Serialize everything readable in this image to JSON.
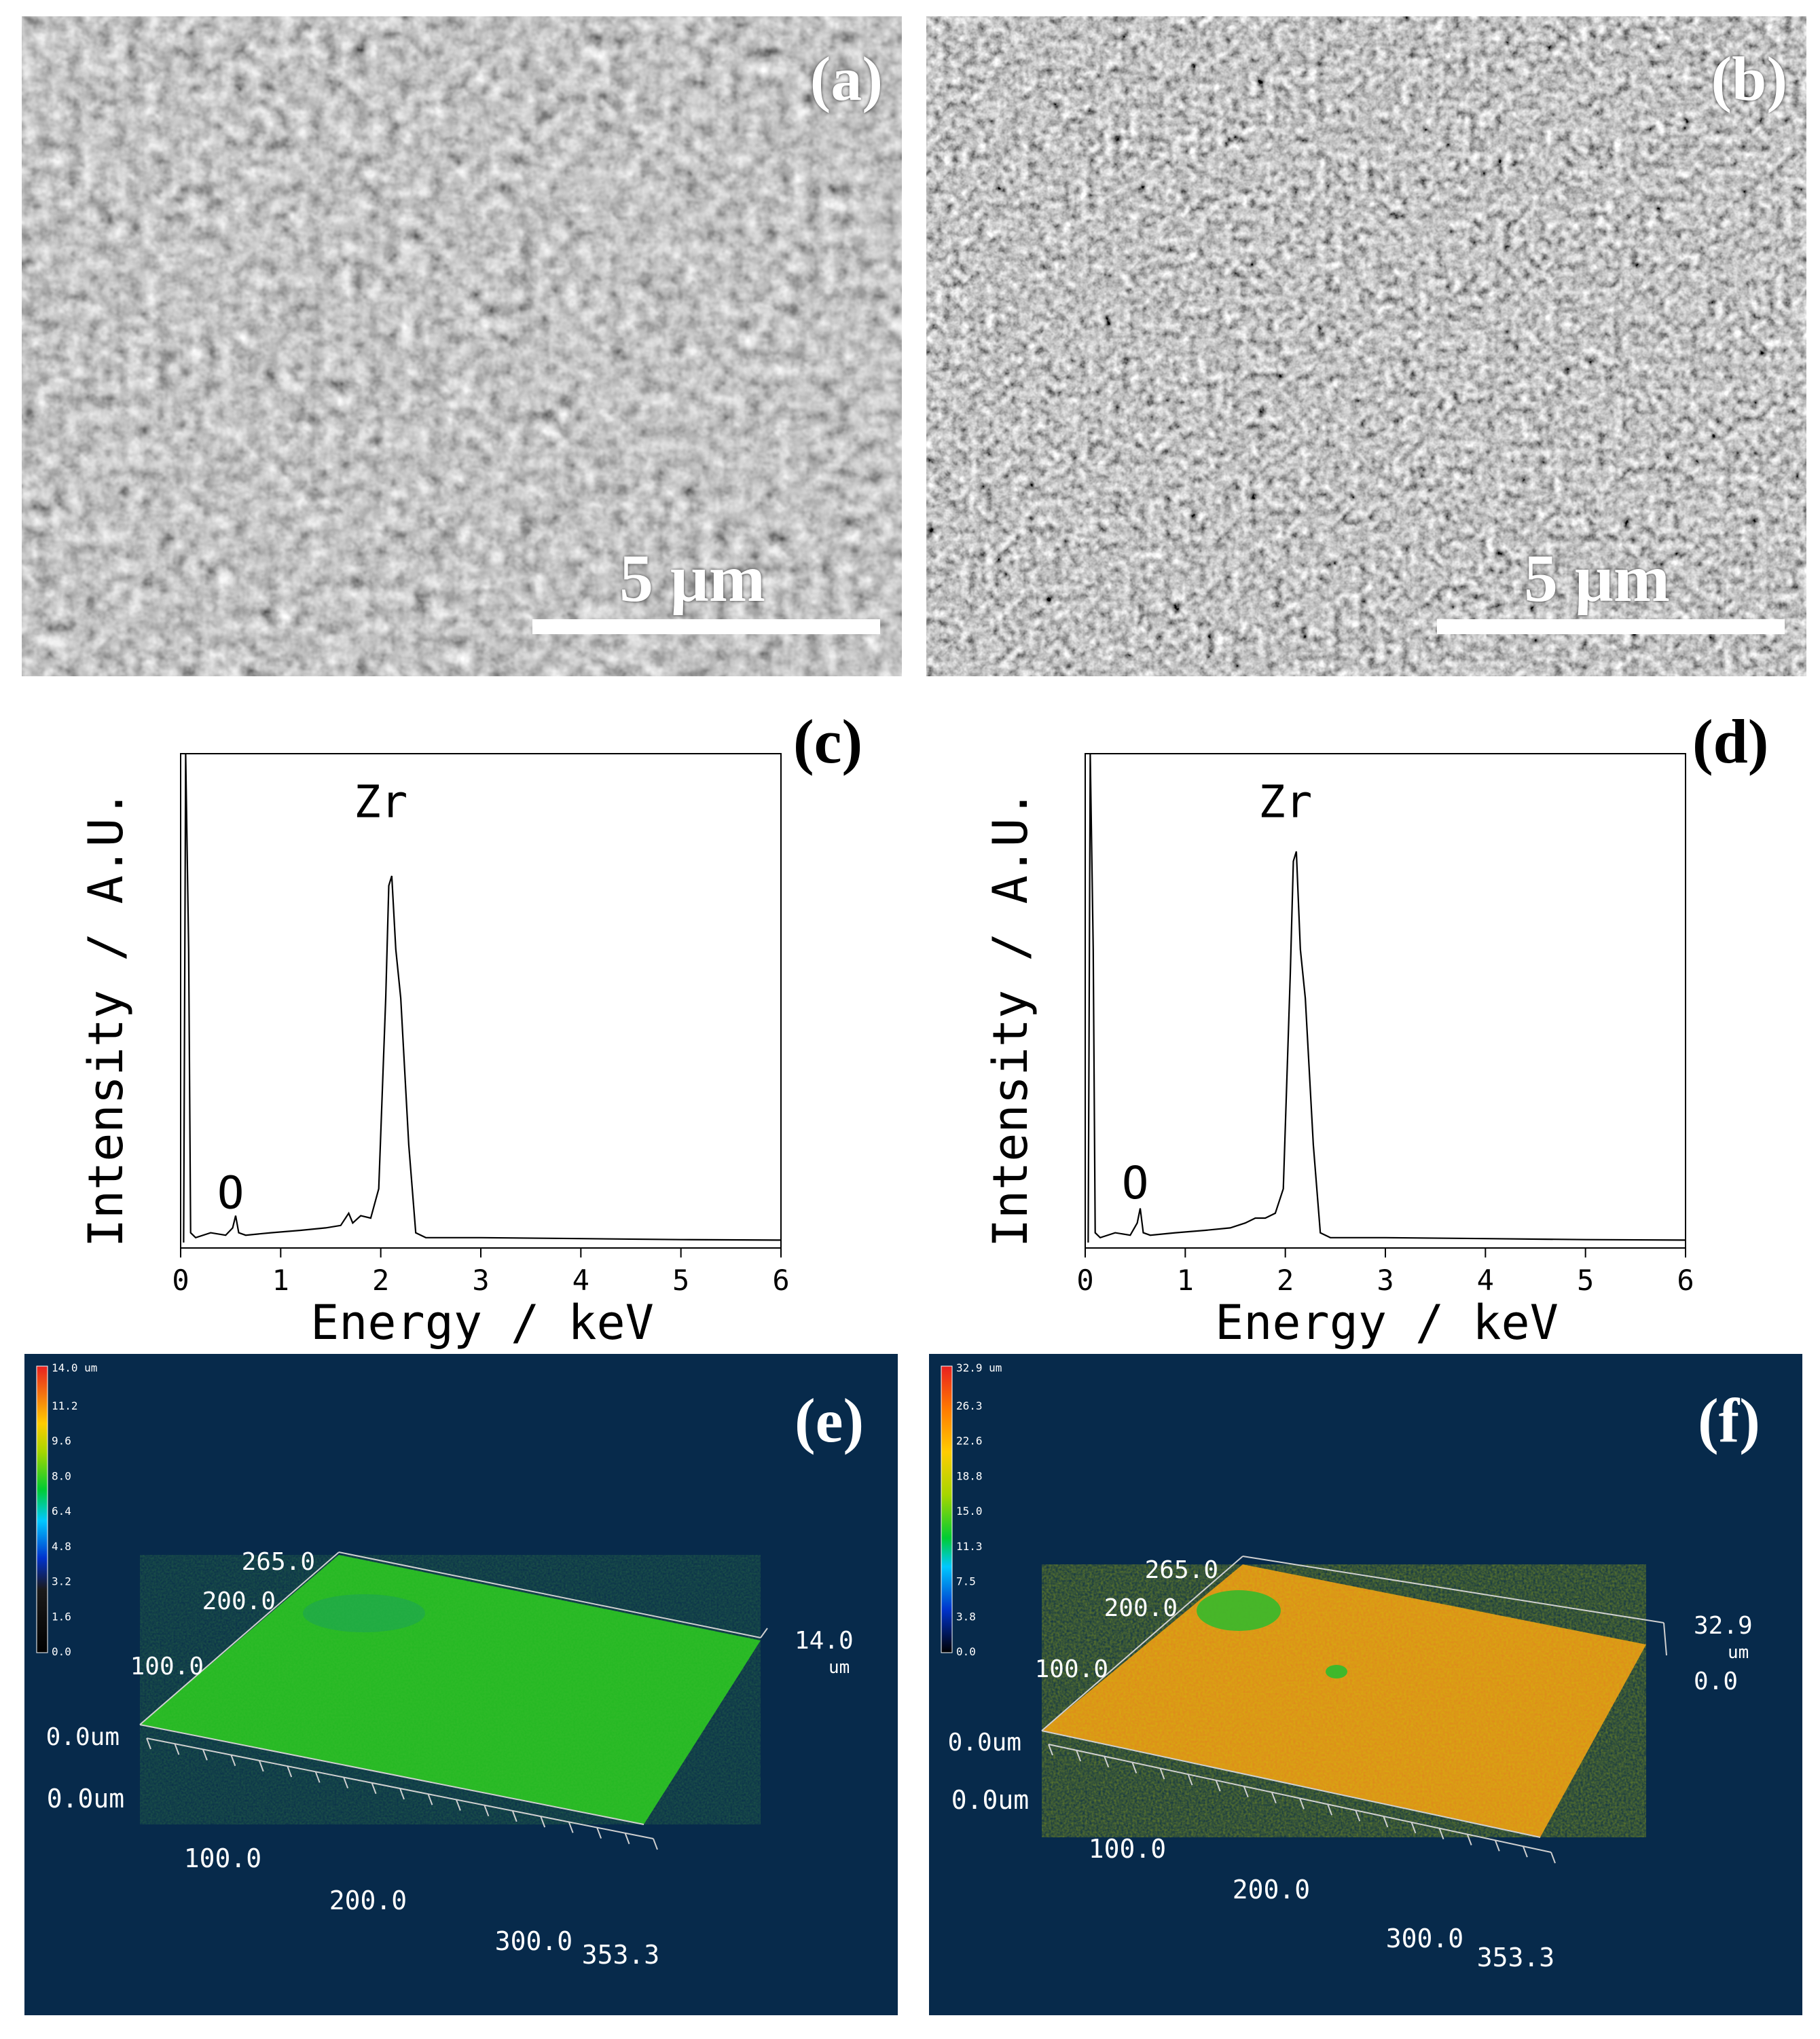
{
  "panels": {
    "a": {
      "label": "(a)",
      "scale_label": "5 μm"
    },
    "b": {
      "label": "(b)",
      "scale_label": "5 μm"
    },
    "c": {
      "label": "(c)"
    },
    "d": {
      "label": "(d)"
    },
    "e": {
      "label": "(e)"
    },
    "f": {
      "label": "(f)"
    }
  },
  "chart_data": [
    {
      "panel": "c",
      "type": "line",
      "xlabel": "Energy / keV",
      "ylabel": "Intensity / A.U.",
      "xlim": [
        0,
        6
      ],
      "xticks": [
        "0",
        "1",
        "2",
        "3",
        "4",
        "5",
        "6"
      ],
      "annotations": [
        {
          "text": "Zr",
          "x": 2.0,
          "y": 0.87
        },
        {
          "text": "O",
          "x": 0.5,
          "y": 0.07
        }
      ],
      "series": [
        {
          "x": [
            0.03,
            0.05,
            0.08,
            0.1,
            0.15,
            0.3,
            0.45,
            0.52,
            0.55,
            0.58,
            0.65,
            0.9,
            1.2,
            1.45,
            1.6,
            1.68,
            1.72,
            1.8,
            1.9,
            1.98,
            2.05,
            2.08,
            2.11,
            2.15,
            2.2,
            2.28,
            2.35,
            2.45,
            3.0,
            4.0,
            5.0,
            6.0
          ],
          "y": [
            0.0,
            1.0,
            0.6,
            0.02,
            0.01,
            0.02,
            0.015,
            0.03,
            0.055,
            0.02,
            0.015,
            0.02,
            0.025,
            0.03,
            0.035,
            0.06,
            0.04,
            0.055,
            0.05,
            0.11,
            0.5,
            0.73,
            0.75,
            0.6,
            0.5,
            0.2,
            0.02,
            0.01,
            0.01,
            0.008,
            0.006,
            0.005
          ]
        }
      ]
    },
    {
      "panel": "d",
      "type": "line",
      "xlabel": "Energy / keV",
      "ylabel": "Intensity / A.U.",
      "xlim": [
        0,
        6
      ],
      "xticks": [
        "0",
        "1",
        "2",
        "3",
        "4",
        "5",
        "6"
      ],
      "annotations": [
        {
          "text": "Zr",
          "x": 2.0,
          "y": 0.87
        },
        {
          "text": "O",
          "x": 0.5,
          "y": 0.09
        }
      ],
      "series": [
        {
          "x": [
            0.03,
            0.05,
            0.08,
            0.1,
            0.15,
            0.3,
            0.45,
            0.52,
            0.55,
            0.58,
            0.65,
            0.9,
            1.2,
            1.45,
            1.6,
            1.7,
            1.8,
            1.9,
            1.98,
            2.05,
            2.08,
            2.11,
            2.15,
            2.2,
            2.28,
            2.35,
            2.45,
            3.0,
            4.0,
            5.0,
            6.0
          ],
          "y": [
            0.0,
            1.0,
            0.6,
            0.02,
            0.01,
            0.02,
            0.015,
            0.04,
            0.07,
            0.02,
            0.015,
            0.02,
            0.025,
            0.03,
            0.04,
            0.05,
            0.05,
            0.06,
            0.11,
            0.55,
            0.78,
            0.8,
            0.6,
            0.5,
            0.2,
            0.02,
            0.01,
            0.01,
            0.008,
            0.006,
            0.005
          ]
        }
      ]
    }
  ],
  "maps": {
    "e": {
      "legend_ticks": [
        "14.0 um",
        "11.2",
        "9.6",
        "8.0",
        "6.4",
        "4.8",
        "3.2",
        "1.6",
        "0.0"
      ],
      "y_labels": [
        "265.0",
        "200.0",
        "100.0",
        "0.0um"
      ],
      "x_labels": [
        "0.0um",
        "100.0",
        "200.0",
        "300.0",
        "353.3"
      ],
      "z_max": "14.0",
      "z_unit": "um"
    },
    "f": {
      "legend_ticks": [
        "32.9 um",
        "26.3",
        "22.6",
        "18.8",
        "15.0",
        "11.3",
        "7.5",
        "3.8",
        "0.0"
      ],
      "y_labels": [
        "265.0",
        "200.0",
        "100.0",
        "0.0um"
      ],
      "x_labels": [
        "0.0um",
        "100.0",
        "200.0",
        "300.0",
        "353.3"
      ],
      "z_max": "32.9",
      "z_unit": "um",
      "z_min": "0.0"
    }
  }
}
